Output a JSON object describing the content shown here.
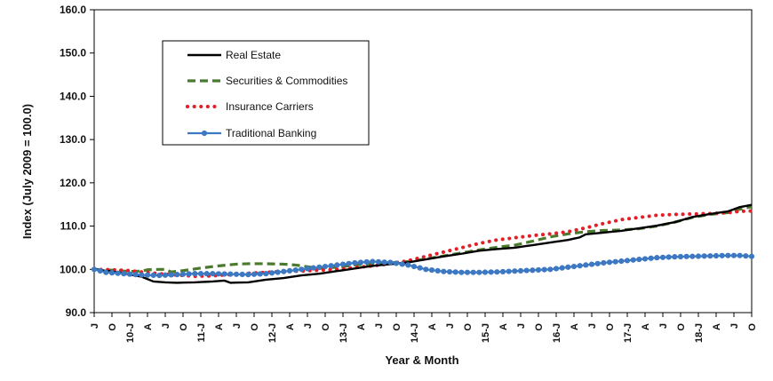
{
  "chart_data": {
    "type": "line",
    "title": "",
    "xlabel": "Year & Month",
    "ylabel": "Index (July 2009 = 100.0)",
    "ylim": [
      90,
      160
    ],
    "yticks": [
      "90.0",
      "100.0",
      "110.0",
      "120.0",
      "130.0",
      "140.0",
      "150.0",
      "160.0"
    ],
    "grid": "none",
    "legend_position": "top-left",
    "x_tick_labels": [
      "J",
      "O",
      "10-J",
      "A",
      "J",
      "O",
      "11-J",
      "A",
      "J",
      "O",
      "12-J",
      "A",
      "J",
      "O",
      "13-J",
      "A",
      "J",
      "O",
      "14-J",
      "A",
      "J",
      "O",
      "15-J",
      "A",
      "J",
      "O",
      "16-J",
      "A",
      "J",
      "O",
      "17-J",
      "A",
      "J",
      "O",
      "18-J",
      "A",
      "J",
      "O"
    ],
    "x_start": "2009-07",
    "x_end": "2018-10",
    "series": [
      {
        "name": "Real Estate",
        "style": "solid",
        "color": "#000000",
        "anchors": [
          [
            "2009-07",
            100.0
          ],
          [
            "2009-10",
            99.5
          ],
          [
            "2010-01",
            98.8
          ],
          [
            "2010-03",
            98.3
          ],
          [
            "2010-05",
            97.2
          ],
          [
            "2010-07",
            97.0
          ],
          [
            "2010-09",
            96.9
          ],
          [
            "2010-12",
            97.0
          ],
          [
            "2011-03",
            97.2
          ],
          [
            "2011-05",
            97.4
          ],
          [
            "2011-06",
            96.9
          ],
          [
            "2011-09",
            97.0
          ],
          [
            "2011-12",
            97.6
          ],
          [
            "2012-03",
            98.0
          ],
          [
            "2012-06",
            98.6
          ],
          [
            "2012-09",
            99.0
          ],
          [
            "2012-12",
            99.6
          ],
          [
            "2013-03",
            100.2
          ],
          [
            "2013-06",
            100.8
          ],
          [
            "2013-09",
            101.2
          ],
          [
            "2013-12",
            101.6
          ],
          [
            "2014-03",
            102.3
          ],
          [
            "2014-06",
            103.0
          ],
          [
            "2014-09",
            103.6
          ],
          [
            "2014-12",
            104.3
          ],
          [
            "2015-03",
            104.7
          ],
          [
            "2015-06",
            105.0
          ],
          [
            "2015-09",
            105.6
          ],
          [
            "2015-12",
            106.2
          ],
          [
            "2016-03",
            106.8
          ],
          [
            "2016-05",
            107.4
          ],
          [
            "2016-06",
            108.1
          ],
          [
            "2016-09",
            108.5
          ],
          [
            "2016-12",
            108.9
          ],
          [
            "2017-03",
            109.5
          ],
          [
            "2017-06",
            110.1
          ],
          [
            "2017-09",
            110.9
          ],
          [
            "2017-12",
            112.1
          ],
          [
            "2018-03",
            112.8
          ],
          [
            "2018-06",
            113.4
          ],
          [
            "2018-08",
            114.4
          ],
          [
            "2018-10",
            114.9
          ]
        ]
      },
      {
        "name": "Securities & Commodities",
        "style": "dashed",
        "color": "#4a7a2c",
        "anchors": [
          [
            "2009-07",
            100.0
          ],
          [
            "2009-10",
            99.8
          ],
          [
            "2010-01",
            99.5
          ],
          [
            "2010-03",
            99.6
          ],
          [
            "2010-04",
            99.9
          ],
          [
            "2010-06",
            100.0
          ],
          [
            "2010-07",
            100.0
          ],
          [
            "2010-08",
            99.4
          ],
          [
            "2010-10",
            99.7
          ],
          [
            "2011-01",
            100.3
          ],
          [
            "2011-04",
            100.8
          ],
          [
            "2011-07",
            101.2
          ],
          [
            "2011-09",
            101.3
          ],
          [
            "2011-12",
            101.3
          ],
          [
            "2012-03",
            101.2
          ],
          [
            "2012-05",
            101.0
          ],
          [
            "2012-07",
            100.6
          ],
          [
            "2012-09",
            100.2
          ],
          [
            "2012-12",
            100.5
          ],
          [
            "2013-03",
            101.0
          ],
          [
            "2013-06",
            101.3
          ],
          [
            "2013-09",
            101.5
          ],
          [
            "2013-12",
            101.8
          ],
          [
            "2014-03",
            102.4
          ],
          [
            "2014-06",
            103.1
          ],
          [
            "2014-09",
            103.8
          ],
          [
            "2014-12",
            104.5
          ],
          [
            "2015-03",
            105.1
          ],
          [
            "2015-06",
            105.6
          ],
          [
            "2015-09",
            106.5
          ],
          [
            "2015-12",
            107.5
          ],
          [
            "2016-03",
            108.2
          ],
          [
            "2016-06",
            108.7
          ],
          [
            "2016-09",
            109.0
          ],
          [
            "2016-12",
            109.1
          ],
          [
            "2017-03",
            109.4
          ],
          [
            "2017-06",
            110.0
          ],
          [
            "2017-09",
            110.9
          ],
          [
            "2017-12",
            112.0
          ],
          [
            "2018-03",
            112.7
          ],
          [
            "2018-06",
            113.1
          ],
          [
            "2018-08",
            113.9
          ],
          [
            "2018-10",
            114.5
          ]
        ]
      },
      {
        "name": "Insurance Carriers",
        "style": "dotted",
        "color": "#e41e26",
        "anchors": [
          [
            "2009-07",
            100.0
          ],
          [
            "2009-10",
            99.9
          ],
          [
            "2010-01",
            99.7
          ],
          [
            "2010-03",
            99.4
          ],
          [
            "2010-06",
            99.0
          ],
          [
            "2010-09",
            98.7
          ],
          [
            "2010-12",
            98.4
          ],
          [
            "2011-03",
            98.5
          ],
          [
            "2011-06",
            98.8
          ],
          [
            "2011-09",
            99.1
          ],
          [
            "2011-12",
            99.3
          ],
          [
            "2012-03",
            99.5
          ],
          [
            "2012-06",
            99.6
          ],
          [
            "2012-09",
            99.8
          ],
          [
            "2012-12",
            100.0
          ],
          [
            "2013-03",
            100.4
          ],
          [
            "2013-06",
            100.8
          ],
          [
            "2013-09",
            101.3
          ],
          [
            "2013-12",
            102.0
          ],
          [
            "2014-03",
            103.0
          ],
          [
            "2014-06",
            104.0
          ],
          [
            "2014-09",
            105.0
          ],
          [
            "2014-12",
            106.0
          ],
          [
            "2015-03",
            106.8
          ],
          [
            "2015-06",
            107.3
          ],
          [
            "2015-09",
            107.8
          ],
          [
            "2015-12",
            108.2
          ],
          [
            "2016-03",
            108.7
          ],
          [
            "2016-06",
            109.6
          ],
          [
            "2016-09",
            110.6
          ],
          [
            "2016-12",
            111.5
          ],
          [
            "2017-03",
            112.0
          ],
          [
            "2017-06",
            112.5
          ],
          [
            "2017-09",
            112.7
          ],
          [
            "2017-12",
            112.8
          ],
          [
            "2018-03",
            112.9
          ],
          [
            "2018-06",
            113.1
          ],
          [
            "2018-08",
            113.4
          ],
          [
            "2018-10",
            113.5
          ]
        ]
      },
      {
        "name": "Traditional Banking",
        "style": "line-with-markers",
        "color": "#3d78c2",
        "anchors": [
          [
            "2009-07",
            100.0
          ],
          [
            "2009-09",
            99.3
          ],
          [
            "2009-12",
            99.0
          ],
          [
            "2010-03",
            98.7
          ],
          [
            "2010-06",
            98.6
          ],
          [
            "2010-09",
            98.8
          ],
          [
            "2010-12",
            99.0
          ],
          [
            "2011-03",
            99.0
          ],
          [
            "2011-06",
            98.9
          ],
          [
            "2011-09",
            98.8
          ],
          [
            "2011-12",
            99.0
          ],
          [
            "2012-03",
            99.5
          ],
          [
            "2012-06",
            100.0
          ],
          [
            "2012-09",
            100.5
          ],
          [
            "2012-12",
            101.0
          ],
          [
            "2013-03",
            101.5
          ],
          [
            "2013-06",
            101.8
          ],
          [
            "2013-09",
            101.6
          ],
          [
            "2013-12",
            101.0
          ],
          [
            "2014-03",
            100.0
          ],
          [
            "2014-06",
            99.5
          ],
          [
            "2014-09",
            99.3
          ],
          [
            "2014-12",
            99.3
          ],
          [
            "2015-03",
            99.4
          ],
          [
            "2015-06",
            99.6
          ],
          [
            "2015-09",
            99.8
          ],
          [
            "2015-12",
            100.0
          ],
          [
            "2016-03",
            100.5
          ],
          [
            "2016-06",
            101.0
          ],
          [
            "2016-09",
            101.5
          ],
          [
            "2016-12",
            101.9
          ],
          [
            "2017-03",
            102.3
          ],
          [
            "2017-06",
            102.7
          ],
          [
            "2017-09",
            102.9
          ],
          [
            "2017-12",
            103.0
          ],
          [
            "2018-03",
            103.1
          ],
          [
            "2018-06",
            103.2
          ],
          [
            "2018-08",
            103.2
          ],
          [
            "2018-10",
            103.0
          ]
        ]
      }
    ]
  }
}
